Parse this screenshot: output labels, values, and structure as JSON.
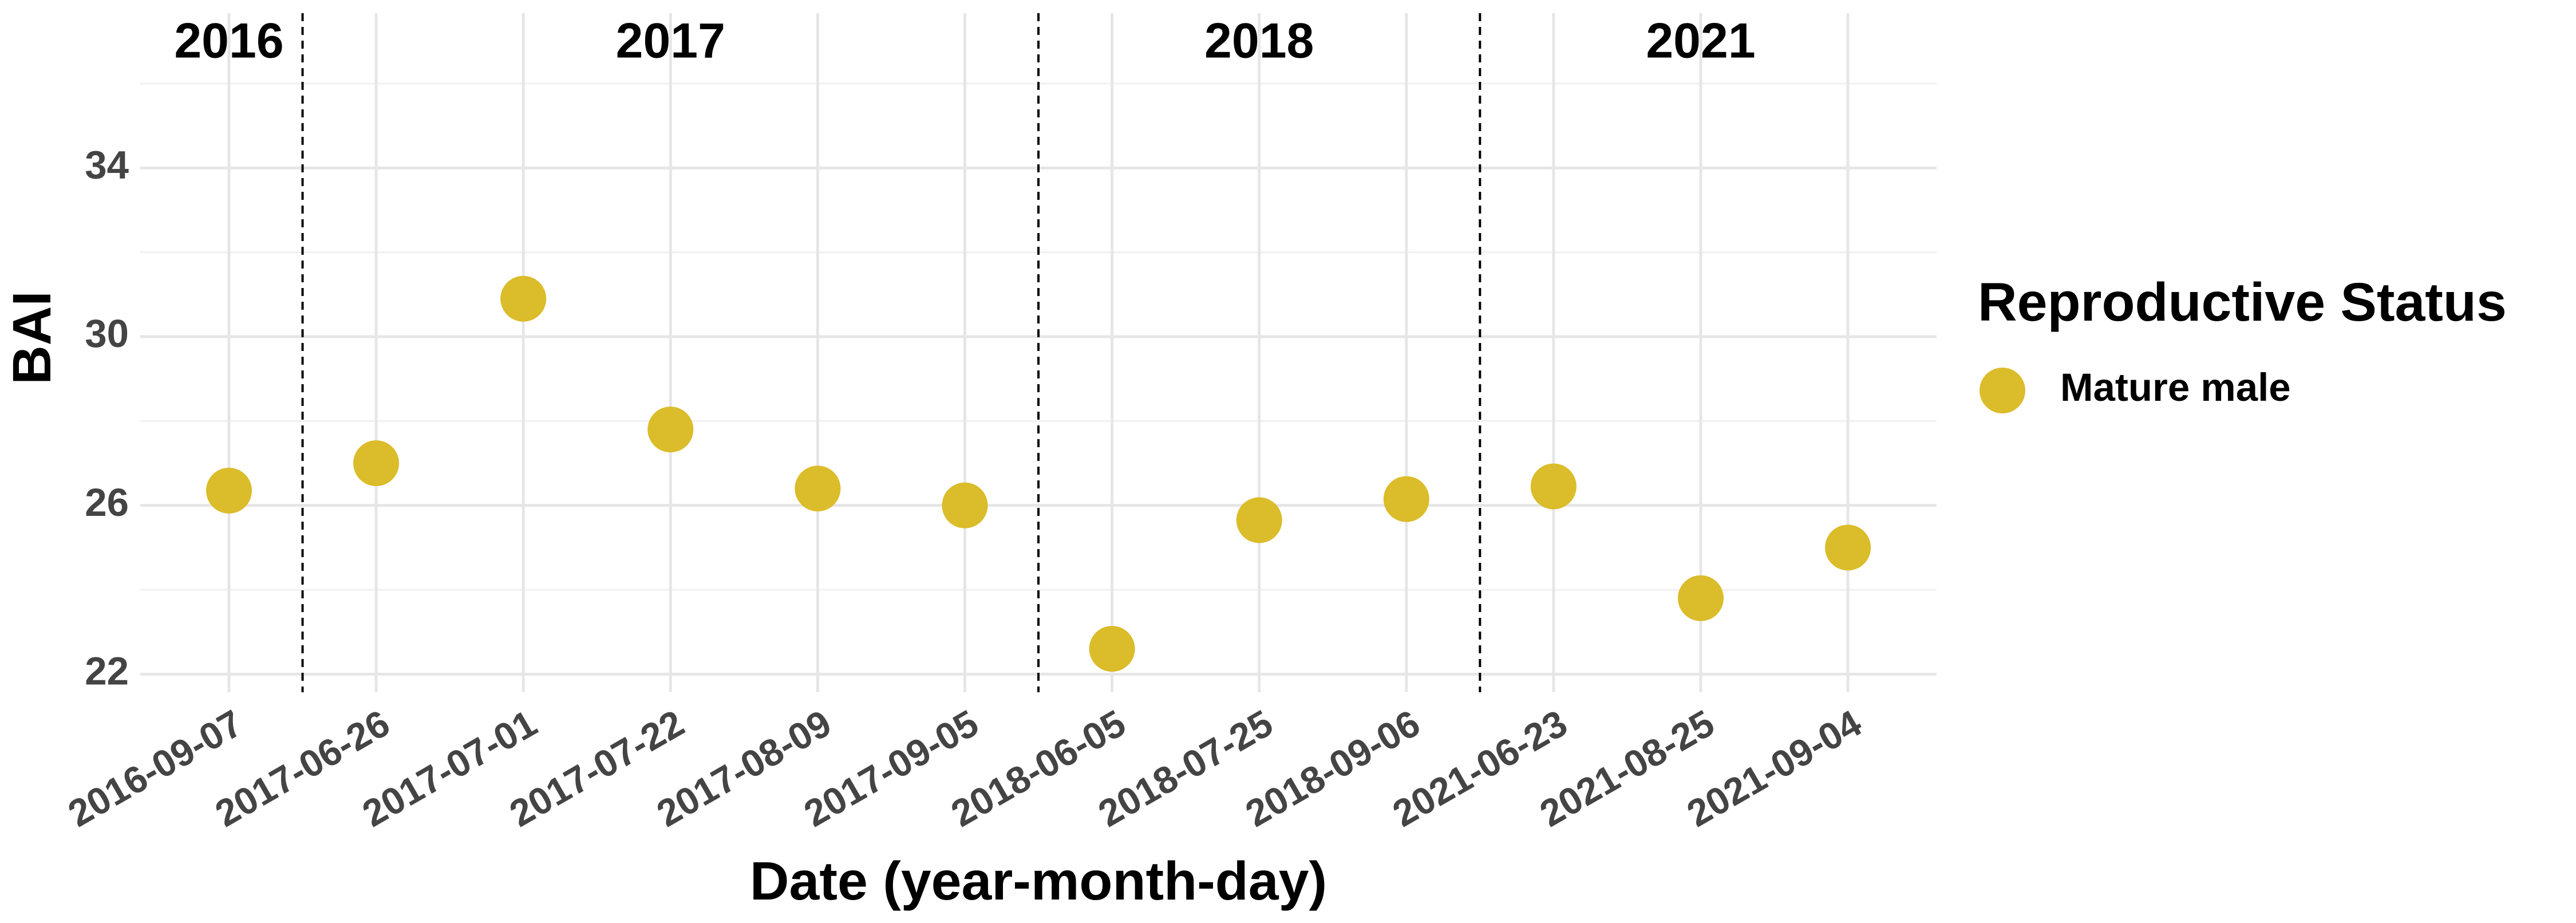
{
  "chart_data": {
    "type": "scatter",
    "x_label": "Date (year-month-day)",
    "y_label": "BAI",
    "legend_title": "Reproductive Status",
    "categories": [
      "2016-09-07",
      "2017-06-26",
      "2017-07-01",
      "2017-07-22",
      "2017-08-09",
      "2017-09-05",
      "2018-06-05",
      "2018-07-25",
      "2018-09-06",
      "2021-06-23",
      "2021-08-25",
      "2021-09-04"
    ],
    "year_labels": [
      "2016",
      "2017",
      "2018",
      "2021"
    ],
    "series": [
      {
        "name": "Mature male",
        "color": "#DBBC2A",
        "values": [
          26.35,
          27.0,
          30.9,
          27.8,
          26.4,
          26.0,
          22.6,
          25.65,
          26.15,
          26.45,
          23.8,
          25.0
        ]
      }
    ],
    "ylim": [
      21.57,
      37.67
    ],
    "yticks": [
      22,
      26,
      30,
      34
    ],
    "minor_yticks": [
      24,
      28,
      32,
      36
    ],
    "grid": true
  }
}
